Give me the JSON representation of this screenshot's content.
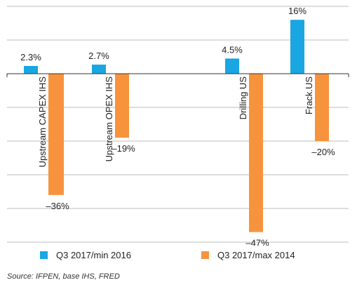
{
  "chart_data": {
    "type": "bar",
    "categories": [
      "Upstream CAPEX IHS",
      "Upstream OPEX IHS",
      "Drilling US",
      "Frack.US"
    ],
    "series": [
      {
        "name": "Q3 2017/min 2016",
        "color": "#1aa6e0",
        "values": [
          2.3,
          2.7,
          4.5,
          16
        ],
        "labels": [
          "2.3%",
          "2.7%",
          "4.5%",
          "16%"
        ]
      },
      {
        "name": "Q3 2017/max 2014",
        "color": "#f7933d",
        "values": [
          -36,
          -19,
          -47,
          -20
        ],
        "labels": [
          "–36%",
          "–19%",
          "–47%",
          "–20%"
        ]
      }
    ],
    "ylim": [
      -50,
      20
    ],
    "grid": true,
    "legend_position": "bottom"
  },
  "source": "Source: IFPEN, base IHS, FRED"
}
